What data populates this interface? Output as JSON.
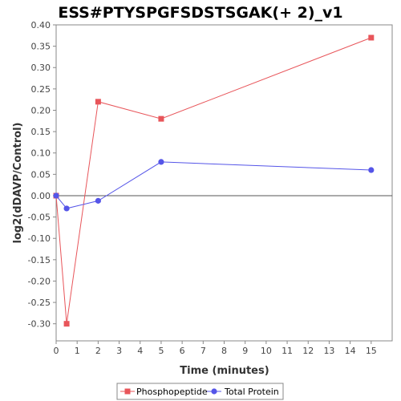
{
  "chart_data": {
    "type": "line",
    "title": "ESS#PTYSPGFSDSTSGAK(+ 2)_v1",
    "xlabel": "Time (minutes)",
    "ylabel": "log2(dDAVP/Control)",
    "xlim": [
      0,
      16
    ],
    "ylim": [
      -0.34,
      0.4
    ],
    "xticks": [
      0,
      1,
      2,
      3,
      4,
      5,
      6,
      7,
      8,
      9,
      10,
      11,
      12,
      13,
      14,
      15
    ],
    "yticks": [
      -0.3,
      -0.25,
      -0.2,
      -0.15,
      -0.1,
      -0.05,
      0.0,
      0.05,
      0.1,
      0.15,
      0.2,
      0.25,
      0.3,
      0.35,
      0.4
    ],
    "zero_line": true,
    "grid": false,
    "legend_position": "bottom-center",
    "series": [
      {
        "name": "Phosphopeptide",
        "color": "#e8555a",
        "marker": "square",
        "x": [
          0,
          0.5,
          2,
          5,
          15
        ],
        "y": [
          0.0,
          -0.3,
          0.22,
          0.18,
          0.37
        ]
      },
      {
        "name": "Total Protein",
        "color": "#5555e8",
        "marker": "circle",
        "x": [
          0,
          0.5,
          2,
          5,
          15
        ],
        "y": [
          0.0,
          -0.03,
          -0.012,
          0.079,
          0.06
        ]
      }
    ]
  }
}
